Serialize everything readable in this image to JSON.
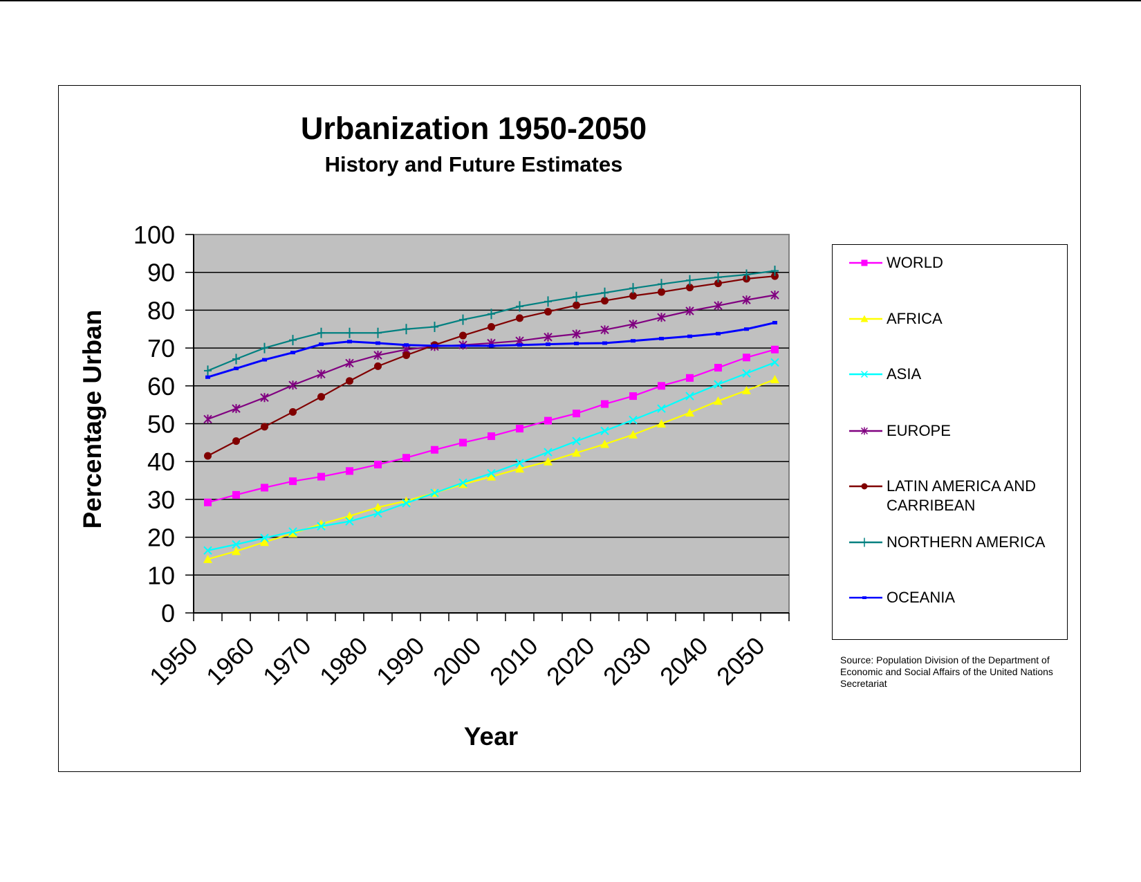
{
  "chart_data": {
    "type": "line",
    "title": "Urbanization 1950-2050",
    "subtitle": "History and Future Estimates",
    "xlabel": "Year",
    "ylabel": "Percentage Urban",
    "x": [
      1950,
      1955,
      1960,
      1965,
      1970,
      1975,
      1980,
      1985,
      1990,
      1995,
      2000,
      2005,
      2010,
      2015,
      2020,
      2025,
      2030,
      2035,
      2040,
      2045,
      2050
    ],
    "x_tick_labels": [
      "1950",
      "1960",
      "1970",
      "1980",
      "1990",
      "2000",
      "2010",
      "2020",
      "2030",
      "2040",
      "2050"
    ],
    "y_tick_labels": [
      "0",
      "10",
      "20",
      "30",
      "40",
      "50",
      "60",
      "70",
      "80",
      "90",
      "100"
    ],
    "ylim": [
      0,
      100
    ],
    "grid": "horizontal",
    "plot_background": "#C0C0C0",
    "legend_position": "right",
    "series": [
      {
        "name": "WORLD",
        "color": "#FF00FF",
        "marker": "square",
        "values": [
          29.2,
          31.2,
          33.1,
          34.8,
          36.0,
          37.5,
          39.2,
          41.0,
          43.1,
          45.0,
          46.7,
          48.7,
          50.8,
          52.7,
          55.2,
          57.3,
          60.0,
          62.1,
          64.8,
          67.5,
          69.6
        ]
      },
      {
        "name": "AFRICA",
        "color": "#FFFF00",
        "marker": "triangle",
        "values": [
          14.2,
          16.3,
          18.7,
          21.0,
          23.5,
          25.6,
          27.9,
          29.6,
          31.7,
          34.0,
          36.0,
          38.1,
          40.0,
          42.3,
          44.6,
          47.1,
          50.0,
          52.9,
          56.0,
          58.8,
          61.7
        ]
      },
      {
        "name": "ASIA",
        "color": "#00FFFF",
        "marker": "x",
        "values": [
          16.5,
          18.1,
          19.8,
          21.5,
          22.9,
          24.2,
          26.3,
          29.0,
          31.7,
          34.4,
          36.9,
          39.6,
          42.5,
          45.4,
          48.1,
          51.0,
          54.0,
          57.3,
          60.4,
          63.3,
          66.2
        ]
      },
      {
        "name": "EUROPE",
        "color": "#800080",
        "marker": "asterisk",
        "values": [
          51.2,
          54.0,
          56.9,
          60.2,
          63.1,
          66.0,
          68.1,
          69.6,
          70.4,
          70.8,
          71.3,
          71.9,
          72.9,
          73.7,
          74.8,
          76.3,
          78.1,
          79.8,
          81.2,
          82.7,
          84.0
        ]
      },
      {
        "name": "LATIN AMERICA AND CARRIBEAN",
        "color": "#800000",
        "marker": "circle",
        "values": [
          41.5,
          45.4,
          49.2,
          53.1,
          57.1,
          61.3,
          65.2,
          68.1,
          70.8,
          73.3,
          75.6,
          77.9,
          79.6,
          81.3,
          82.5,
          83.8,
          84.8,
          86.0,
          87.1,
          88.3,
          89.0
        ]
      },
      {
        "name": "NORTHERN AMERICA",
        "color": "#008080",
        "marker": "plus",
        "values": [
          64.0,
          67.1,
          70.0,
          72.1,
          74.0,
          74.0,
          74.0,
          75.0,
          75.6,
          77.5,
          79.0,
          81.0,
          82.3,
          83.5,
          84.6,
          85.8,
          86.9,
          87.9,
          88.7,
          89.4,
          90.4
        ]
      },
      {
        "name": "OCEANIA",
        "color": "#0000FF",
        "marker": "dash",
        "values": [
          62.3,
          64.6,
          66.9,
          68.8,
          71.0,
          71.7,
          71.3,
          70.8,
          70.6,
          70.6,
          70.6,
          70.8,
          71.0,
          71.2,
          71.3,
          71.9,
          72.5,
          73.1,
          73.8,
          75.0,
          76.7
        ]
      }
    ],
    "source_note": "Source: Population Division of the Department of Economic and Social Affairs of the United Nations Secretariat"
  }
}
